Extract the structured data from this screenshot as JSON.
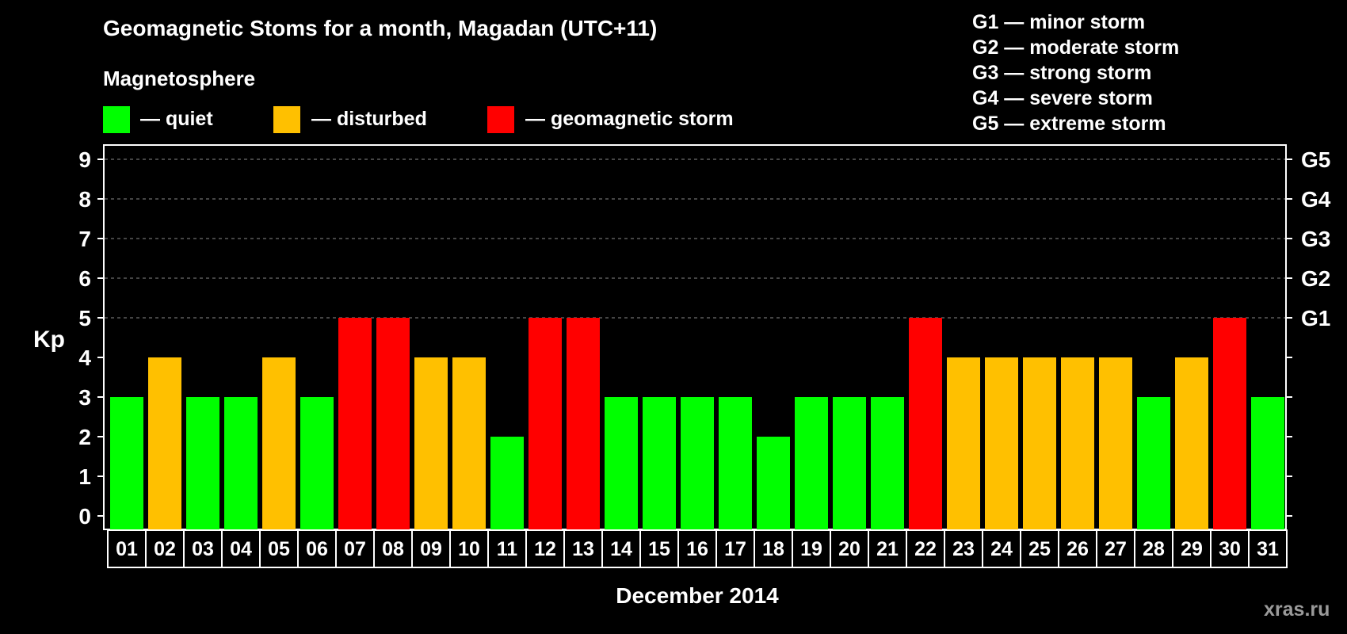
{
  "header": {
    "title": "Geomagnetic Stoms for a month, Magadan (UTC+11)",
    "section_label": "Magnetosphere"
  },
  "legend": {
    "items": [
      {
        "label": "— quiet",
        "color": "#00ff00"
      },
      {
        "label": "— disturbed",
        "color": "#ffc000"
      },
      {
        "label": "— geomagnetic storm",
        "color": "#ff0000"
      }
    ]
  },
  "g_legend": [
    "G1 — minor storm",
    "G2 — moderate storm",
    "G3 — strong storm",
    "G4 — severe storm",
    "G5 — extreme storm"
  ],
  "watermark": "xras.ru",
  "chart_data": {
    "type": "bar",
    "title": "Geomagnetic Stoms for a month, Magadan (UTC+11)",
    "xlabel": "December 2014",
    "ylabel": "Kp",
    "ylim": [
      0,
      9
    ],
    "yticks": [
      0,
      1,
      2,
      3,
      4,
      5,
      6,
      7,
      8,
      9
    ],
    "right_axis_labels": [
      {
        "value": 5,
        "label": "G1"
      },
      {
        "value": 6,
        "label": "G2"
      },
      {
        "value": 7,
        "label": "G3"
      },
      {
        "value": 8,
        "label": "G4"
      },
      {
        "value": 9,
        "label": "G5"
      }
    ],
    "grid": "dashed horizontal at 5–9",
    "categories": [
      "01",
      "02",
      "03",
      "04",
      "05",
      "06",
      "07",
      "08",
      "09",
      "10",
      "11",
      "12",
      "13",
      "14",
      "15",
      "16",
      "17",
      "18",
      "19",
      "20",
      "21",
      "22",
      "23",
      "24",
      "25",
      "26",
      "27",
      "28",
      "29",
      "30",
      "31"
    ],
    "values": [
      3,
      4,
      3,
      3,
      4,
      3,
      5,
      5,
      4,
      4,
      2,
      5,
      5,
      3,
      3,
      3,
      3,
      2,
      3,
      3,
      3,
      5,
      4,
      4,
      4,
      4,
      4,
      3,
      4,
      5,
      3
    ],
    "color_rule": {
      "quiet": "#00ff00",
      "disturbed": "#ffc000",
      "geomagnetic storm": "#ff0000"
    }
  }
}
